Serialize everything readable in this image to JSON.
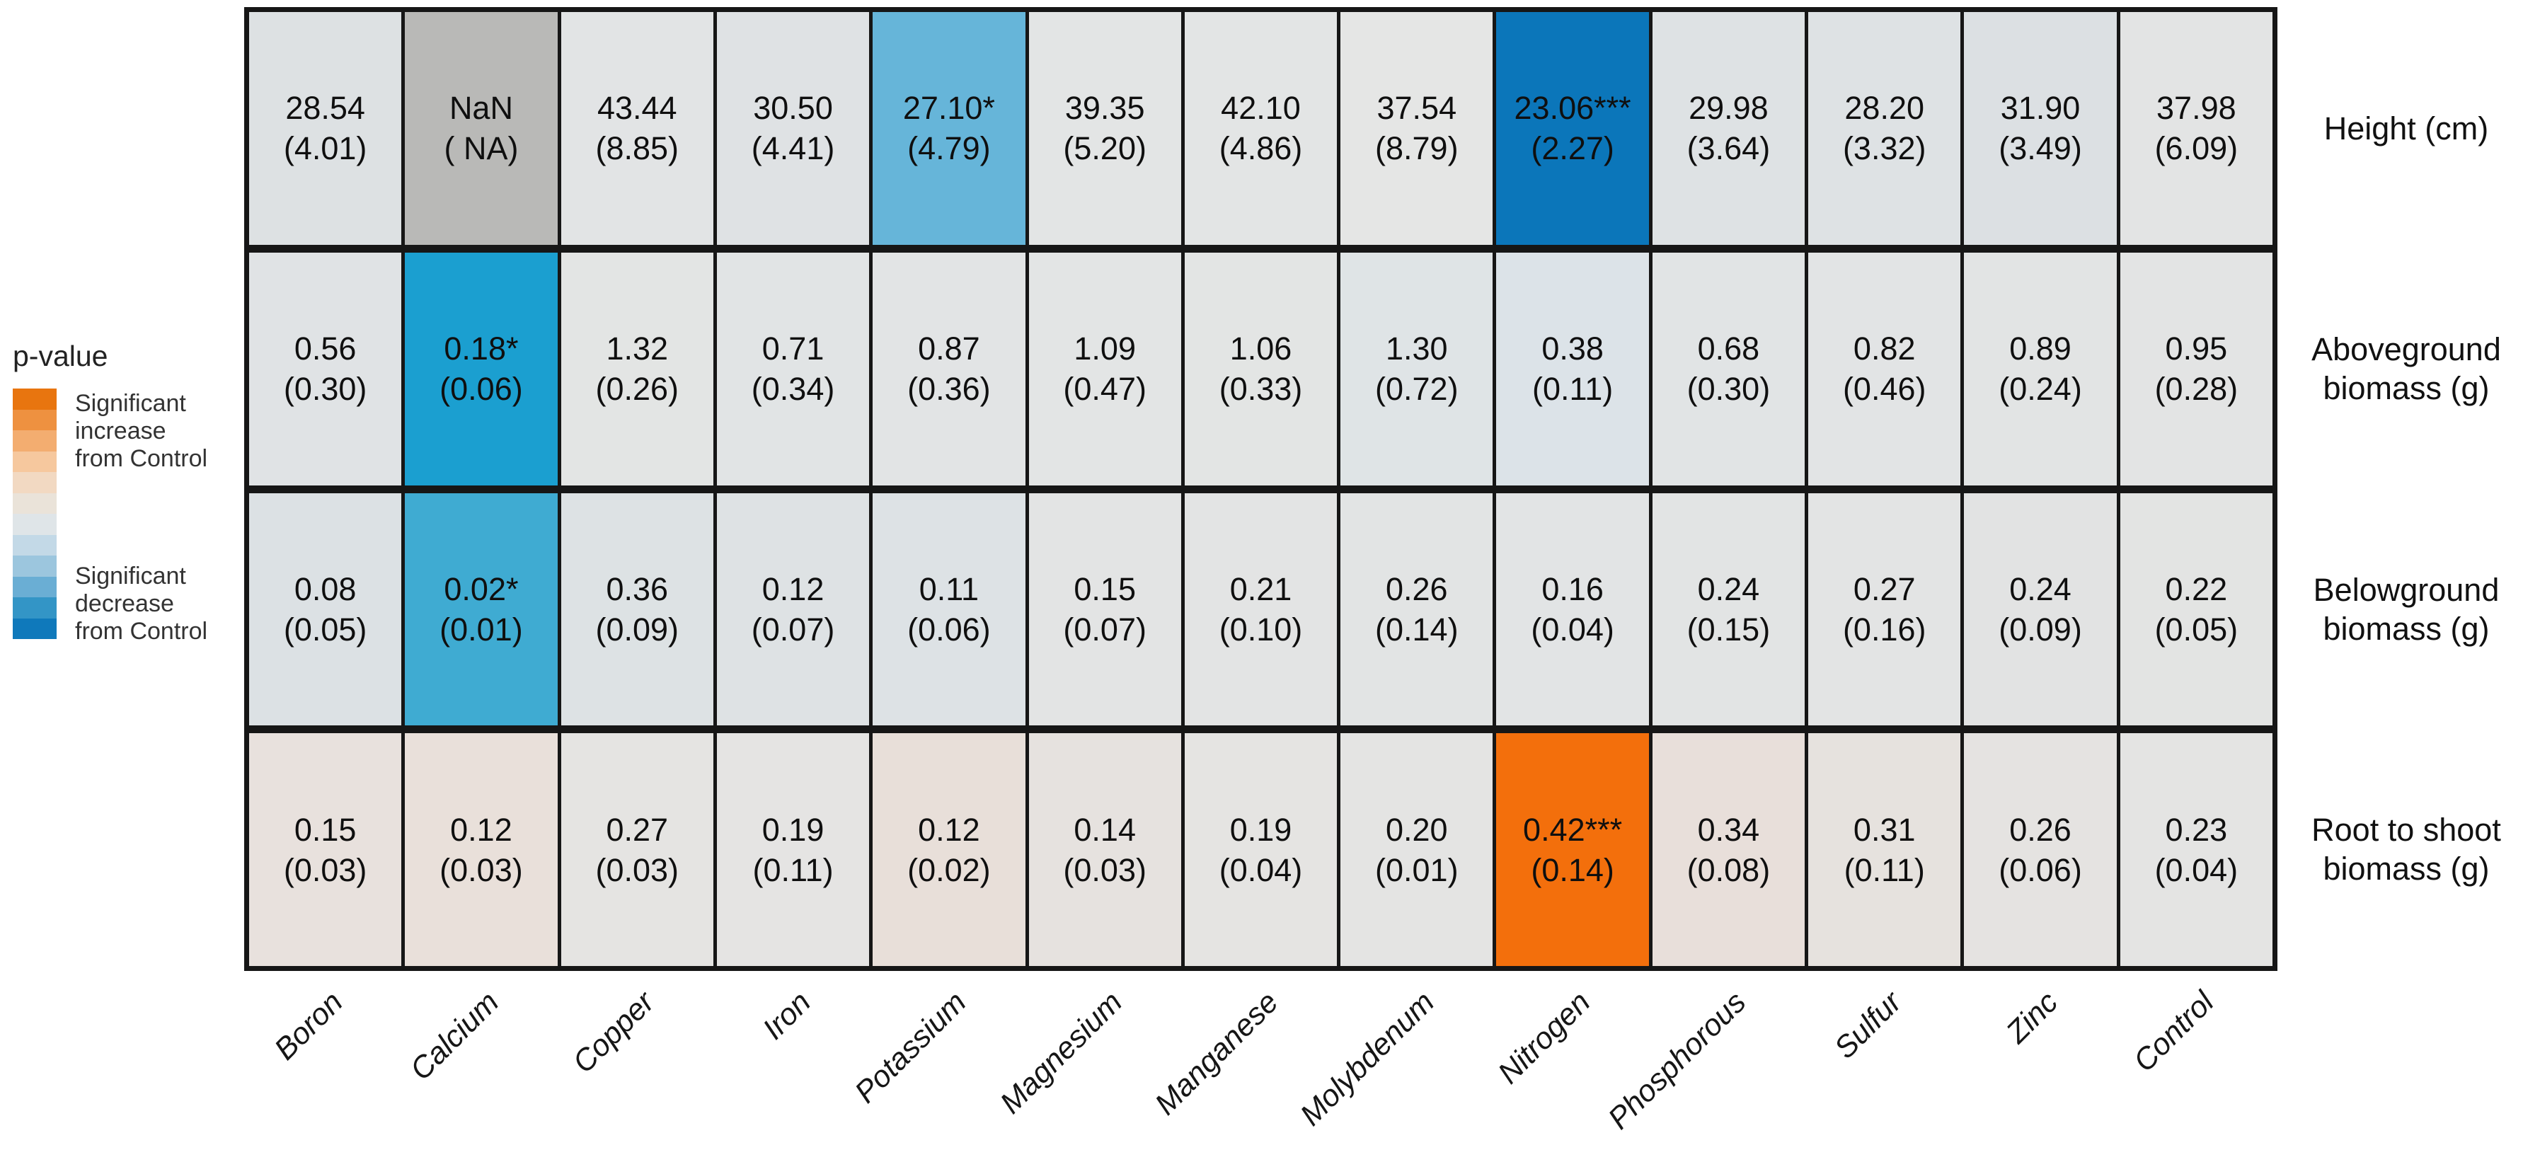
{
  "chart_data": {
    "type": "heatmap",
    "categories": [
      "Boron",
      "Calcium",
      "Copper",
      "Iron",
      "Potassium",
      "Magnesium",
      "Manganese",
      "Molybdenum",
      "Nitrogen",
      "Phosphorous",
      "Sulfur",
      "Zinc",
      "Control"
    ],
    "rows": [
      {
        "label": "Height (cm)",
        "cells": [
          {
            "v": "28.54",
            "se": "(4.01)",
            "color": "#dde1e3"
          },
          {
            "v": "NaN",
            "se": "( NA)",
            "color": "#b9b9b7"
          },
          {
            "v": "43.44",
            "se": "(8.85)",
            "color": "#e2e4e5"
          },
          {
            "v": "30.50",
            "se": "(4.41)",
            "color": "#dfe2e4"
          },
          {
            "v": "27.10*",
            "se": "(4.79)",
            "color": "#66b5d9"
          },
          {
            "v": "39.35",
            "se": "(5.20)",
            "color": "#e3e5e5"
          },
          {
            "v": "42.10",
            "se": "(4.86)",
            "color": "#e3e5e5"
          },
          {
            "v": "37.54",
            "se": "(8.79)",
            "color": "#e5e6e5"
          },
          {
            "v": "23.06***",
            "se": "(2.27)",
            "color": "#0b76ba"
          },
          {
            "v": "29.98",
            "se": "(3.64)",
            "color": "#dee2e4"
          },
          {
            "v": "28.20",
            "se": "(3.32)",
            "color": "#dee2e4"
          },
          {
            "v": "31.90",
            "se": "(3.49)",
            "color": "#dce0e3"
          },
          {
            "v": "37.98",
            "se": "(6.09)",
            "color": "#e3e4e4"
          }
        ]
      },
      {
        "label": "Aboveground\nbiomass (g)",
        "cells": [
          {
            "v": "0.56",
            "se": "(0.30)",
            "color": "#e0e3e5"
          },
          {
            "v": "0.18*",
            "se": "(0.06)",
            "color": "#1b9fd0"
          },
          {
            "v": "1.32",
            "se": "(0.26)",
            "color": "#e3e5e4"
          },
          {
            "v": "0.71",
            "se": "(0.34)",
            "color": "#e1e4e5"
          },
          {
            "v": "0.87",
            "se": "(0.36)",
            "color": "#e2e4e5"
          },
          {
            "v": "1.09",
            "se": "(0.47)",
            "color": "#e3e5e5"
          },
          {
            "v": "1.06",
            "se": "(0.33)",
            "color": "#e3e5e4"
          },
          {
            "v": "1.30",
            "se": "(0.72)",
            "color": "#dfe4e6"
          },
          {
            "v": "0.38",
            "se": "(0.11)",
            "color": "#dce3e8"
          },
          {
            "v": "0.68",
            "se": "(0.30)",
            "color": "#e1e4e5"
          },
          {
            "v": "0.82",
            "se": "(0.46)",
            "color": "#e2e4e5"
          },
          {
            "v": "0.89",
            "se": "(0.24)",
            "color": "#e2e4e4"
          },
          {
            "v": "0.95",
            "se": "(0.28)",
            "color": "#e3e4e4"
          }
        ]
      },
      {
        "label": "Belowground\nbiomass (g)",
        "cells": [
          {
            "v": "0.08",
            "se": "(0.05)",
            "color": "#dce1e4"
          },
          {
            "v": "0.02*",
            "se": "(0.01)",
            "color": "#3fabd2"
          },
          {
            "v": "0.36",
            "se": "(0.09)",
            "color": "#dde2e4"
          },
          {
            "v": "0.12",
            "se": "(0.07)",
            "color": "#dee2e4"
          },
          {
            "v": "0.11",
            "se": "(0.06)",
            "color": "#dde2e5"
          },
          {
            "v": "0.15",
            "se": "(0.07)",
            "color": "#e3e4e4"
          },
          {
            "v": "0.21",
            "se": "(0.10)",
            "color": "#e3e4e4"
          },
          {
            "v": "0.26",
            "se": "(0.14)",
            "color": "#e2e4e4"
          },
          {
            "v": "0.16",
            "se": "(0.04)",
            "color": "#e2e4e5"
          },
          {
            "v": "0.24",
            "se": "(0.15)",
            "color": "#e2e4e4"
          },
          {
            "v": "0.27",
            "se": "(0.16)",
            "color": "#e3e4e4"
          },
          {
            "v": "0.24",
            "se": "(0.09)",
            "color": "#e2e3e3"
          },
          {
            "v": "0.22",
            "se": "(0.05)",
            "color": "#e3e4e3"
          }
        ]
      },
      {
        "label": "Root to shoot\nbiomass (g)",
        "cells": [
          {
            "v": "0.15",
            "se": "(0.03)",
            "color": "#e8e1dd"
          },
          {
            "v": "0.12",
            "se": "(0.03)",
            "color": "#e9e0da"
          },
          {
            "v": "0.27",
            "se": "(0.03)",
            "color": "#e5e4e2"
          },
          {
            "v": "0.19",
            "se": "(0.11)",
            "color": "#e5e4e3"
          },
          {
            "v": "0.12",
            "se": "(0.02)",
            "color": "#e8dfd9"
          },
          {
            "v": "0.14",
            "se": "(0.03)",
            "color": "#e6e2df"
          },
          {
            "v": "0.19",
            "se": "(0.04)",
            "color": "#e5e4e2"
          },
          {
            "v": "0.20",
            "se": "(0.01)",
            "color": "#e4e4e3"
          },
          {
            "v": "0.42***",
            "se": "(0.14)",
            "color": "#f36f0c"
          },
          {
            "v": "0.34",
            "se": "(0.08)",
            "color": "#e8dfda"
          },
          {
            "v": "0.31",
            "se": "(0.11)",
            "color": "#e6e2de"
          },
          {
            "v": "0.26",
            "se": "(0.06)",
            "color": "#e5e3e1"
          },
          {
            "v": "0.23",
            "se": "(0.04)",
            "color": "#e4e4e3"
          }
        ]
      }
    ],
    "legend": {
      "title": "p-value",
      "increase_label": "Significant\nincrease\nfrom Control",
      "decrease_label": "Significant\ndecrease\nfrom Control",
      "steps": [
        "#e8750f",
        "#ee9140",
        "#f3ad70",
        "#f6c89e",
        "#f2d9c2",
        "#eae3d9",
        "#dfe5e8",
        "#c3d9e7",
        "#9cc6de",
        "#6aaed4",
        "#3395c6",
        "#0f79bb"
      ]
    },
    "layout_hints": {
      "grid_lines": "thick black cell borders",
      "x_tick_angle": 45,
      "legend_position": "left"
    }
  }
}
